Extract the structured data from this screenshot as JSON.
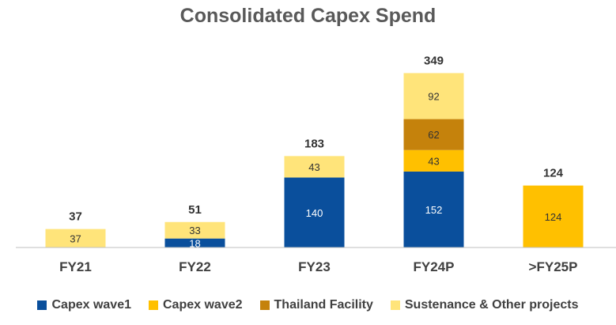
{
  "chart_data": {
    "type": "bar",
    "stacked": true,
    "title": "Consolidated Capex Spend",
    "categories": [
      "FY21",
      "FY22",
      "FY23",
      "FY24P",
      ">FY25P"
    ],
    "series": [
      {
        "name": "Capex wave1",
        "color": "#0a4f9c",
        "values": [
          null,
          18,
          140,
          152,
          null
        ]
      },
      {
        "name": "Capex wave2",
        "color": "#ffc000",
        "values": [
          null,
          null,
          null,
          43,
          124
        ]
      },
      {
        "name": "Thailand Facility",
        "color": "#c5820c",
        "values": [
          null,
          null,
          null,
          62,
          null
        ]
      },
      {
        "name": "Sustenance & Other projects",
        "color": "#ffe47a",
        "values": [
          37,
          33,
          43,
          92,
          null
        ]
      }
    ],
    "totals": [
      37,
      51,
      183,
      349,
      124
    ],
    "legend_position": "bottom",
    "grid": false
  }
}
